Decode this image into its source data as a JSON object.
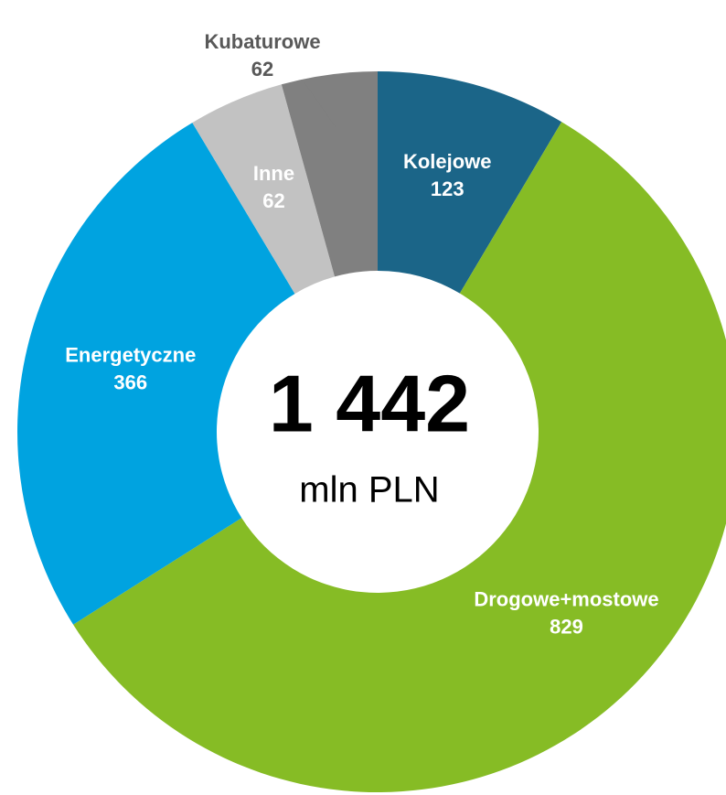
{
  "chart_data": {
    "type": "donut",
    "center_label": "1 442",
    "center_unit": "mln PLN",
    "categories": [
      "Kolejowe",
      "Drogowe+mostowe",
      "Energetyczne",
      "Inne",
      "Kubaturowe"
    ],
    "values": [
      123,
      829,
      366,
      62,
      62
    ],
    "colors": [
      "#1b6588",
      "#86bc25",
      "#00a3e0",
      "#c2c2c2",
      "#808080"
    ]
  }
}
